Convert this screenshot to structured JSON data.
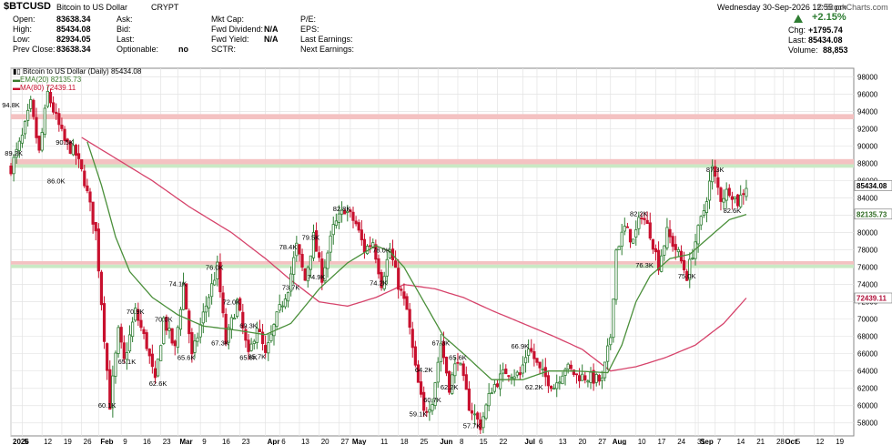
{
  "header": {
    "symbol": "$BTCUSD",
    "name": "Bitcoin to US Dollar",
    "exchange": "CRYPT",
    "datetime": "Wednesday  30-Sep-2026  12:55 pm",
    "brand": "© StockCharts.com",
    "change_pct": "+2.15%",
    "quote": [
      {
        "label": "Open:",
        "value": "83638.34"
      },
      {
        "label": "High:",
        "value": "85434.08"
      },
      {
        "label": "Low:",
        "value": "82934.05"
      },
      {
        "label": "Prev Close:",
        "value": "83638.34"
      }
    ],
    "col2": [
      {
        "label": "Ask:",
        "value": ""
      },
      {
        "label": "Bid:",
        "value": ""
      },
      {
        "label": "Last:",
        "value": ""
      },
      {
        "label": "Optionable:",
        "value": "no"
      }
    ],
    "col3": [
      {
        "label": "Mkt Cap:",
        "value": ""
      },
      {
        "label": "Fwd Dividend:",
        "value": "N/A"
      },
      {
        "label": "Fwd Yield:",
        "value": "N/A"
      },
      {
        "label": "SCTR:",
        "value": ""
      }
    ],
    "col4": [
      {
        "label": "P/E:"
      },
      {
        "label": "EPS:"
      },
      {
        "label": "Last Earnings:"
      },
      {
        "label": "Next Earnings:"
      }
    ],
    "right": [
      {
        "label": "Chg:",
        "value": "+1795.74"
      },
      {
        "label": "Last:",
        "value": "85434.08"
      },
      {
        "label": "Volume:",
        "value": "88,853"
      }
    ]
  },
  "legend": {
    "price": "Bitcoin to US Dollar (Daily) 85434.08",
    "ema": "EMA(20) 82135.73",
    "ma": "MA(80) 72439.11"
  },
  "colors": {
    "up": "#2e7d32",
    "down": "#c8102e",
    "ema": "#4a8f3a",
    "ma": "#d6436b",
    "resistance_band": "#f4c2c2",
    "support_band": "#c9e9c4",
    "grid": "#e3e3e3"
  },
  "chart_data": {
    "type": "candlestick",
    "title": "Bitcoin to US Dollar (Daily)",
    "ylim": [
      56500,
      99000
    ],
    "y_axis_side": "right",
    "y_ticks": [
      58000,
      60000,
      62000,
      64000,
      66000,
      68000,
      70000,
      72000,
      74000,
      76000,
      78000,
      80000,
      82000,
      84000,
      86000,
      88000,
      90000,
      92000,
      94000,
      96000,
      98000
    ],
    "y_tick_labels": [
      "58000",
      "60000",
      "62000",
      "64000",
      "66000",
      "68000",
      "70000",
      "72000",
      "74000",
      "76000",
      "78000",
      "80000",
      "82000",
      "84000",
      "86000",
      "88000",
      "90000",
      "92000",
      "94000",
      "96000",
      "98000"
    ],
    "x_range": [
      "2026-01-01",
      "2026-10-26"
    ],
    "x_ticks": [
      {
        "date": "2026-01-01",
        "label": "2026"
      },
      {
        "date": "2026-01-05",
        "label": "5"
      },
      {
        "date": "2026-01-12",
        "label": "12"
      },
      {
        "date": "2026-01-19",
        "label": "19"
      },
      {
        "date": "2026-01-26",
        "label": "26"
      },
      {
        "date": "2026-02-01",
        "label": "Feb"
      },
      {
        "date": "2026-02-09",
        "label": "9"
      },
      {
        "date": "2026-02-16",
        "label": "16"
      },
      {
        "date": "2026-02-23",
        "label": "23"
      },
      {
        "date": "2026-03-01",
        "label": "Mar"
      },
      {
        "date": "2026-03-09",
        "label": "9"
      },
      {
        "date": "2026-03-16",
        "label": "16"
      },
      {
        "date": "2026-03-23",
        "label": "23"
      },
      {
        "date": "2026-04-01",
        "label": "Apr"
      },
      {
        "date": "2026-04-06",
        "label": "6"
      },
      {
        "date": "2026-04-13",
        "label": "13"
      },
      {
        "date": "2026-04-20",
        "label": "20"
      },
      {
        "date": "2026-04-27",
        "label": "27"
      },
      {
        "date": "2026-05-01",
        "label": "May"
      },
      {
        "date": "2026-05-11",
        "label": "11"
      },
      {
        "date": "2026-05-18",
        "label": "18"
      },
      {
        "date": "2026-05-25",
        "label": "25"
      },
      {
        "date": "2026-06-01",
        "label": "Jun"
      },
      {
        "date": "2026-06-08",
        "label": "8"
      },
      {
        "date": "2026-06-15",
        "label": "15"
      },
      {
        "date": "2026-06-22",
        "label": "22"
      },
      {
        "date": "2026-07-01",
        "label": "Jul"
      },
      {
        "date": "2026-07-06",
        "label": "6"
      },
      {
        "date": "2026-07-13",
        "label": "13"
      },
      {
        "date": "2026-07-20",
        "label": "20"
      },
      {
        "date": "2026-07-27",
        "label": "27"
      },
      {
        "date": "2026-08-01",
        "label": "Aug"
      },
      {
        "date": "2026-08-10",
        "label": "10"
      },
      {
        "date": "2026-08-17",
        "label": "17"
      },
      {
        "date": "2026-08-24",
        "label": "24"
      },
      {
        "date": "2026-08-31",
        "label": "31"
      },
      {
        "date": "2026-09-01",
        "label": "Sep"
      },
      {
        "date": "2026-09-07",
        "label": "7"
      },
      {
        "date": "2026-09-14",
        "label": "14"
      },
      {
        "date": "2026-09-21",
        "label": "21"
      },
      {
        "date": "2026-09-28",
        "label": "28"
      },
      {
        "date": "2026-10-01",
        "label": "Oct"
      },
      {
        "date": "2026-10-05",
        "label": "5"
      },
      {
        "date": "2026-10-12",
        "label": "12"
      },
      {
        "date": "2026-10-19",
        "label": "19"
      }
    ],
    "bands": [
      {
        "kind": "resistance",
        "y0": 93100,
        "y1": 93700
      },
      {
        "kind": "resistance",
        "y0": 87900,
        "y1": 88500
      },
      {
        "kind": "support",
        "y0": 87500,
        "y1": 87900
      },
      {
        "kind": "resistance",
        "y0": 76300,
        "y1": 76700
      },
      {
        "kind": "support",
        "y0": 75900,
        "y1": 76300
      }
    ],
    "price_keys": [
      [
        "2026-01-01",
        87500
      ],
      [
        "2026-01-05",
        91000
      ],
      [
        "2026-01-08",
        94800
      ],
      [
        "2026-01-11",
        89200
      ],
      [
        "2026-01-14",
        96100
      ],
      [
        "2026-01-17",
        93200
      ],
      [
        "2026-01-20",
        90500
      ],
      [
        "2026-01-24",
        89000
      ],
      [
        "2026-01-27",
        86000
      ],
      [
        "2026-01-31",
        80000
      ],
      [
        "2026-02-02",
        72000
      ],
      [
        "2026-02-05",
        60100
      ],
      [
        "2026-02-08",
        68500
      ],
      [
        "2026-02-10",
        65100
      ],
      [
        "2026-02-14",
        70900
      ],
      [
        "2026-02-18",
        67000
      ],
      [
        "2026-02-21",
        62600
      ],
      [
        "2026-02-24",
        70000
      ],
      [
        "2026-02-28",
        66500
      ],
      [
        "2026-03-03",
        74100
      ],
      [
        "2026-03-06",
        65600
      ],
      [
        "2026-03-10",
        70500
      ],
      [
        "2026-03-15",
        76000
      ],
      [
        "2026-03-18",
        67300
      ],
      [
        "2026-03-22",
        72000
      ],
      [
        "2026-03-26",
        65600
      ],
      [
        "2026-03-29",
        69300
      ],
      [
        "2026-04-01",
        65700
      ],
      [
        "2026-04-05",
        70200
      ],
      [
        "2026-04-09",
        73700
      ],
      [
        "2026-04-12",
        78400
      ],
      [
        "2026-04-15",
        74500
      ],
      [
        "2026-04-18",
        79500
      ],
      [
        "2026-04-21",
        74900
      ],
      [
        "2026-04-25",
        80500
      ],
      [
        "2026-04-29",
        82800
      ],
      [
        "2026-05-03",
        81000
      ],
      [
        "2026-05-06",
        78000
      ],
      [
        "2026-05-09",
        79000
      ],
      [
        "2026-05-12",
        74200
      ],
      [
        "2026-05-15",
        78000
      ],
      [
        "2026-05-18",
        74000
      ],
      [
        "2026-05-21",
        71000
      ],
      [
        "2026-05-24",
        64200
      ],
      [
        "2026-05-27",
        59100
      ],
      [
        "2026-05-30",
        60700
      ],
      [
        "2026-06-02",
        67300
      ],
      [
        "2026-06-05",
        62200
      ],
      [
        "2026-06-08",
        65600
      ],
      [
        "2026-06-12",
        60000
      ],
      [
        "2026-06-16",
        57700
      ],
      [
        "2026-06-20",
        62000
      ],
      [
        "2026-06-25",
        64000
      ],
      [
        "2026-06-30",
        63500
      ],
      [
        "2026-07-03",
        66900
      ],
      [
        "2026-07-07",
        64000
      ],
      [
        "2026-07-12",
        62200
      ],
      [
        "2026-07-16",
        64500
      ],
      [
        "2026-07-20",
        63500
      ],
      [
        "2026-07-25",
        63200
      ],
      [
        "2026-07-29",
        62800
      ],
      [
        "2026-08-01",
        68000
      ],
      [
        "2026-08-03",
        78000
      ],
      [
        "2026-08-06",
        80500
      ],
      [
        "2026-08-09",
        79000
      ],
      [
        "2026-08-12",
        82200
      ],
      [
        "2026-08-15",
        80000
      ],
      [
        "2026-08-18",
        76300
      ],
      [
        "2026-08-21",
        80000
      ],
      [
        "2026-08-25",
        77500
      ],
      [
        "2026-08-28",
        75000
      ],
      [
        "2026-08-31",
        79000
      ],
      [
        "2026-09-03",
        82600
      ],
      [
        "2026-09-06",
        87300
      ],
      [
        "2026-09-09",
        84000
      ],
      [
        "2026-09-12",
        85000
      ],
      [
        "2026-09-15",
        83500
      ],
      [
        "2026-09-18",
        85434
      ]
    ],
    "ema_keys": [
      [
        "2026-01-28",
        90500
      ],
      [
        "2026-02-02",
        85500
      ],
      [
        "2026-02-07",
        79500
      ],
      [
        "2026-02-12",
        75500
      ],
      [
        "2026-02-20",
        72500
      ],
      [
        "2026-03-01",
        70500
      ],
      [
        "2026-03-10",
        69200
      ],
      [
        "2026-03-20",
        68800
      ],
      [
        "2026-04-01",
        68200
      ],
      [
        "2026-04-10",
        69500
      ],
      [
        "2026-04-20",
        73500
      ],
      [
        "2026-04-30",
        76500
      ],
      [
        "2026-05-10",
        78500
      ],
      [
        "2026-05-15",
        77800
      ],
      [
        "2026-05-20",
        76000
      ],
      [
        "2026-05-27",
        72000
      ],
      [
        "2026-06-03",
        68000
      ],
      [
        "2026-06-10",
        66000
      ],
      [
        "2026-06-20",
        63000
      ],
      [
        "2026-07-01",
        63000
      ],
      [
        "2026-07-10",
        64000
      ],
      [
        "2026-07-20",
        64000
      ],
      [
        "2026-07-31",
        63800
      ],
      [
        "2026-08-05",
        67000
      ],
      [
        "2026-08-10",
        72000
      ],
      [
        "2026-08-15",
        75000
      ],
      [
        "2026-08-22",
        77000
      ],
      [
        "2026-08-29",
        77500
      ],
      [
        "2026-09-05",
        79500
      ],
      [
        "2026-09-12",
        81500
      ],
      [
        "2026-09-18",
        82100
      ]
    ],
    "ma_keys": [
      [
        "2026-01-26",
        91000
      ],
      [
        "2026-02-05",
        89000
      ],
      [
        "2026-02-20",
        86000
      ],
      [
        "2026-03-05",
        83000
      ],
      [
        "2026-03-20",
        80000
      ],
      [
        "2026-04-01",
        77000
      ],
      [
        "2026-04-10",
        74500
      ],
      [
        "2026-04-20",
        72000
      ],
      [
        "2026-04-30",
        71500
      ],
      [
        "2026-05-10",
        72500
      ],
      [
        "2026-05-20",
        74000
      ],
      [
        "2026-05-31",
        73500
      ],
      [
        "2026-06-10",
        72500
      ],
      [
        "2026-06-20",
        71000
      ],
      [
        "2026-07-01",
        69500
      ],
      [
        "2026-07-12",
        68000
      ],
      [
        "2026-07-22",
        66500
      ],
      [
        "2026-08-01",
        64000
      ],
      [
        "2026-08-10",
        64500
      ],
      [
        "2026-08-20",
        65500
      ],
      [
        "2026-08-31",
        67000
      ],
      [
        "2026-09-10",
        69500
      ],
      [
        "2026-09-18",
        72439
      ]
    ],
    "price_labels": [
      [
        "2026-01-01",
        94800,
        "94.8K"
      ],
      [
        "2026-01-02",
        89200,
        "89.2K"
      ],
      [
        "2026-01-20",
        90500,
        "90.5K"
      ],
      [
        "2026-01-17",
        86000,
        "86.0K"
      ],
      [
        "2026-02-04",
        60100,
        "60.1K"
      ],
      [
        "2026-02-11",
        65100,
        "65.1K"
      ],
      [
        "2026-02-14",
        70900,
        "70.9K"
      ],
      [
        "2026-02-22",
        62600,
        "62.6K"
      ],
      [
        "2026-02-24",
        70000,
        "70.0K"
      ],
      [
        "2026-03-01",
        74100,
        "74.1K"
      ],
      [
        "2026-03-04",
        65600,
        "65.6K"
      ],
      [
        "2026-03-14",
        76000,
        "76.0K"
      ],
      [
        "2026-03-16",
        67300,
        "67.3K"
      ],
      [
        "2026-03-20",
        72000,
        "72.0K"
      ],
      [
        "2026-03-26",
        69300,
        "69.3K"
      ],
      [
        "2026-03-29",
        65700,
        "65.7K"
      ],
      [
        "2026-03-26",
        65600,
        "65.6K"
      ],
      [
        "2026-04-10",
        73700,
        "73.7K"
      ],
      [
        "2026-04-09",
        78400,
        "78.4K"
      ],
      [
        "2026-04-17",
        79500,
        "79.5K"
      ],
      [
        "2026-04-19",
        74900,
        "74.9K"
      ],
      [
        "2026-04-28",
        82800,
        "82.8K"
      ],
      [
        "2026-05-12",
        78000,
        "78.0K"
      ],
      [
        "2026-05-11",
        74200,
        "74.2K"
      ],
      [
        "2026-05-25",
        59100,
        "59.1K"
      ],
      [
        "2026-05-30",
        60700,
        "60.7K"
      ],
      [
        "2026-06-02",
        67300,
        "67.3K"
      ],
      [
        "2026-05-27",
        64200,
        "64.2K"
      ],
      [
        "2026-06-05",
        62200,
        "62.2K"
      ],
      [
        "2026-06-08",
        65600,
        "65.6K"
      ],
      [
        "2026-06-13",
        57700,
        "57.7K"
      ],
      [
        "2026-06-30",
        66900,
        "66.9K"
      ],
      [
        "2026-07-05",
        62200,
        "62.2K"
      ],
      [
        "2026-08-11",
        82200,
        "82.2K"
      ],
      [
        "2026-08-13",
        76300,
        "76.3K"
      ],
      [
        "2026-08-28",
        75000,
        "75.0K"
      ],
      [
        "2026-09-07",
        87300,
        "87.3K"
      ],
      [
        "2026-09-13",
        82600,
        "82.6K"
      ]
    ],
    "last_close": 85434.08,
    "last_close_label": "85434.08",
    "ema_last": 82135.73,
    "ema_last_label": "82135.73",
    "ma_last": 72439.11,
    "ma_last_label": "72439.11"
  }
}
